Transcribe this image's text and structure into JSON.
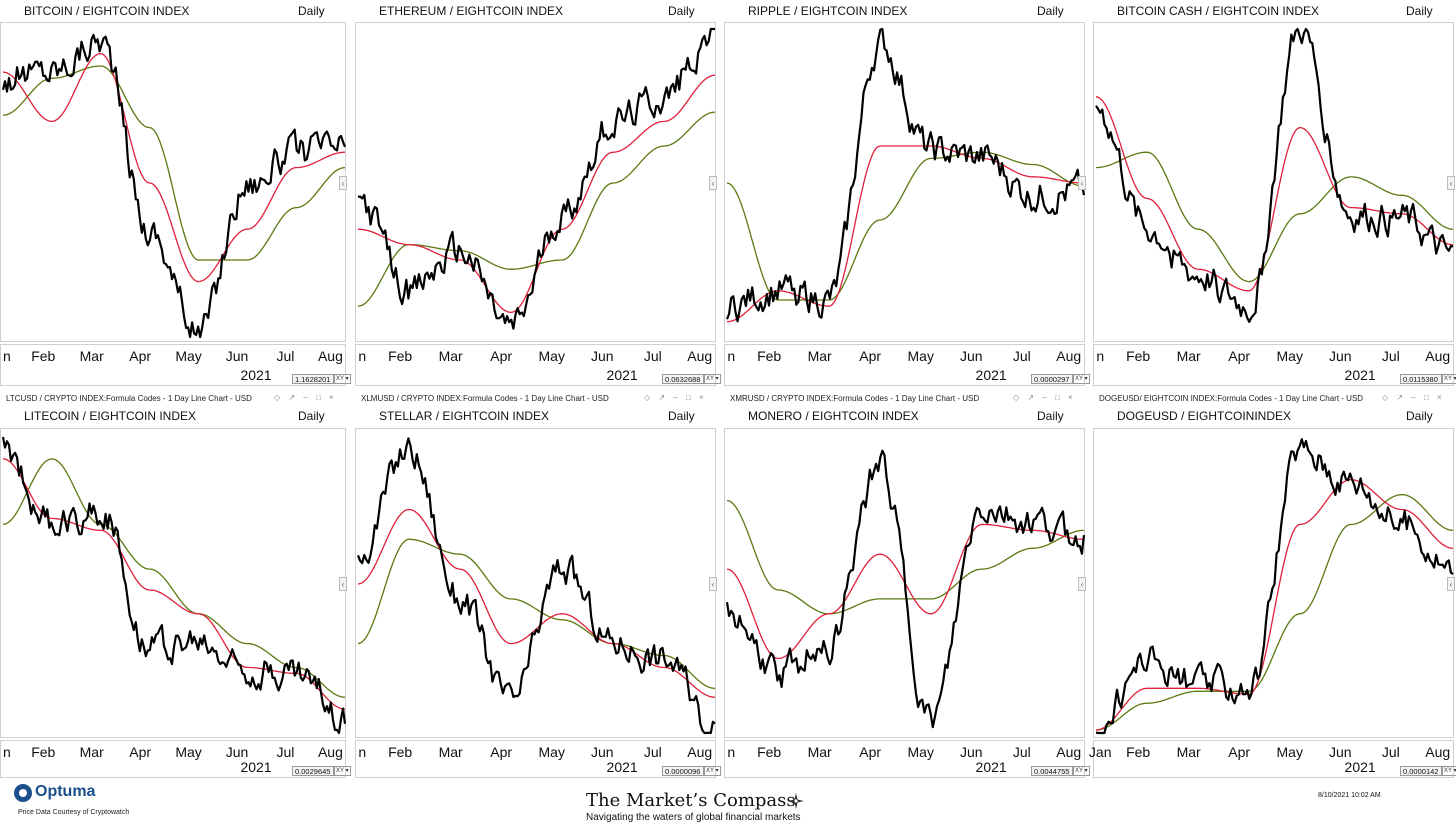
{
  "colors": {
    "price": "#000000",
    "ma_short": "#e0203a",
    "ma_long": "#5a7a10"
  },
  "panels": [
    {
      "title": "BITCOIN / EIGHTCOIN INDEX",
      "freq": "Daily",
      "subheader": "",
      "months": [
        "n",
        "Feb",
        "Mar",
        "Apr",
        "May",
        "Jun",
        "Jul",
        "Aug"
      ],
      "year": "2021",
      "value": "1.1628201",
      "xy": "XY ▾"
    },
    {
      "title": "ETHEREUM / EIGHTCOIN INDEX",
      "freq": "Daily",
      "subheader": "",
      "months": [
        "n",
        "Feb",
        "Mar",
        "Apr",
        "May",
        "Jun",
        "Jul",
        "Aug"
      ],
      "year": "2021",
      "value": "0.0632688",
      "xy": "XY ▾"
    },
    {
      "title": "RIPPLE / EIGHTCOIN INDEX",
      "freq": "Daily",
      "subheader": "",
      "months": [
        "n",
        "Feb",
        "Mar",
        "Apr",
        "May",
        "Jun",
        "Jul",
        "Aug"
      ],
      "year": "2021",
      "value": "0.0000297",
      "xy": "XY ▾"
    },
    {
      "title": "BITCOIN CASH / EIGHTCOIN INDEX",
      "freq": "Daily",
      "subheader": "",
      "months": [
        "n",
        "Feb",
        "Mar",
        "Apr",
        "May",
        "Jun",
        "Jul",
        "Aug"
      ],
      "year": "2021",
      "value": "0.0115380",
      "xy": "XY ▾"
    },
    {
      "title": "LITECOIN / EIGHTCOIN INDEX",
      "freq": "Daily",
      "subheader": "LTCUSD / CRYPTO INDEX:Formula Codes - 1 Day Line Chart - USD",
      "months": [
        "n",
        "Feb",
        "Mar",
        "Apr",
        "May",
        "Jun",
        "Jul",
        "Aug"
      ],
      "year": "2021",
      "value": "0.0029645",
      "xy": "XY ▾"
    },
    {
      "title": "STELLAR / EIGHTCOIN INDEX",
      "freq": "Daily",
      "subheader": "XLMUSD / CRYPTO INDEX:Formula Codes - 1 Day Line Chart - USD",
      "months": [
        "n",
        "Feb",
        "Mar",
        "Apr",
        "May",
        "Jun",
        "Jul",
        "Aug"
      ],
      "year": "2021",
      "value": "0.0000096",
      "xy": "XY ▾"
    },
    {
      "title": "MONERO / EIGHTCOIN INDEX",
      "freq": "Daily",
      "subheader": "XMRUSD / CRYPTO INDEX:Formula Codes - 1 Day Line Chart - USD",
      "months": [
        "n",
        "Feb",
        "Mar",
        "Apr",
        "May",
        "Jun",
        "Jul",
        "Aug"
      ],
      "year": "2021",
      "value": "0.0044755",
      "xy": "XY ▾"
    },
    {
      "title": "DOGEUSD / EIGHTCOININDEX",
      "freq": "Daily",
      "subheader": "DOGEUSD/ EIGHTCOIN INDEX:Formula Codes - 1 Day Line Chart - USD",
      "months": [
        "Jan",
        "Feb",
        "Mar",
        "Apr",
        "May",
        "Jun",
        "Jul",
        "Aug"
      ],
      "year": "2021",
      "value": "0.0000142",
      "xy": "XY ▾"
    }
  ],
  "chart_data": [
    {
      "type": "line",
      "title": "BITCOIN / EIGHTCOIN INDEX",
      "categories": [
        "Jan",
        "Feb",
        "Mar",
        "Apr",
        "May",
        "Jun",
        "Jul",
        "Aug"
      ],
      "series": [
        {
          "values": [
            0.84,
            0.87,
            0.97,
            0.35,
            0.02,
            0.5,
            0.6,
            0.62
          ]
        },
        {
          "values": [
            0.86,
            0.7,
            0.92,
            0.5,
            0.18,
            0.35,
            0.55,
            0.6
          ]
        },
        {
          "values": [
            0.72,
            0.84,
            0.88,
            0.68,
            0.25,
            0.25,
            0.42,
            0.55
          ]
        }
      ]
    },
    {
      "type": "line",
      "title": "ETHEREUM / EIGHTCOIN INDEX",
      "categories": [
        "Jan",
        "Feb",
        "Mar",
        "Apr",
        "May",
        "Jun",
        "Jul",
        "Aug"
      ],
      "series": [
        {
          "values": [
            0.45,
            0.15,
            0.28,
            0.03,
            0.4,
            0.7,
            0.78,
            0.99
          ]
        },
        {
          "values": [
            0.35,
            0.3,
            0.25,
            0.08,
            0.35,
            0.6,
            0.7,
            0.85
          ]
        },
        {
          "values": [
            0.1,
            0.3,
            0.28,
            0.22,
            0.25,
            0.5,
            0.62,
            0.73
          ]
        }
      ]
    },
    {
      "type": "line",
      "title": "RIPPLE / EIGHTCOIN INDEX",
      "categories": [
        "Jan",
        "Feb",
        "Mar",
        "Apr",
        "May",
        "Jun",
        "Jul",
        "Aug"
      ],
      "series": [
        {
          "values": [
            0.1,
            0.15,
            0.12,
            0.95,
            0.6,
            0.58,
            0.46,
            0.47
          ]
        },
        {
          "values": [
            0.05,
            0.15,
            0.1,
            0.62,
            0.62,
            0.58,
            0.52,
            0.5
          ]
        },
        {
          "values": [
            0.5,
            0.12,
            0.12,
            0.38,
            0.58,
            0.6,
            0.56,
            0.49
          ]
        }
      ]
    },
    {
      "type": "line",
      "title": "BITCOIN CASH / EIGHTCOIN INDEX",
      "categories": [
        "Jan",
        "Feb",
        "Mar",
        "Apr",
        "May",
        "Jun",
        "Jul",
        "Aug"
      ],
      "series": [
        {
          "values": [
            0.75,
            0.35,
            0.2,
            0.1,
            1.0,
            0.4,
            0.38,
            0.26
          ]
        },
        {
          "values": [
            0.78,
            0.45,
            0.22,
            0.15,
            0.68,
            0.42,
            0.4,
            0.3
          ]
        },
        {
          "values": [
            0.55,
            0.6,
            0.35,
            0.18,
            0.4,
            0.52,
            0.46,
            0.35
          ]
        }
      ]
    },
    {
      "type": "line",
      "title": "LITECOIN / EIGHTCOIN INDEX",
      "categories": [
        "Jan",
        "Feb",
        "Mar",
        "Apr",
        "May",
        "Jun",
        "Jul",
        "Aug"
      ],
      "series": [
        {
          "values": [
            0.95,
            0.7,
            0.75,
            0.3,
            0.3,
            0.22,
            0.2,
            0.05
          ]
        },
        {
          "values": [
            0.92,
            0.72,
            0.68,
            0.48,
            0.4,
            0.22,
            0.2,
            0.08
          ]
        },
        {
          "values": [
            0.7,
            0.92,
            0.7,
            0.55,
            0.4,
            0.3,
            0.22,
            0.12
          ]
        }
      ]
    },
    {
      "type": "line",
      "title": "STELLAR / EIGHTCOIN INDEX",
      "categories": [
        "Jan",
        "Feb",
        "Mar",
        "Apr",
        "May",
        "Jun",
        "Jul",
        "Aug"
      ],
      "series": [
        {
          "values": [
            0.6,
            0.95,
            0.45,
            0.1,
            0.55,
            0.3,
            0.25,
            0.02
          ]
        },
        {
          "values": [
            0.5,
            0.75,
            0.55,
            0.3,
            0.4,
            0.3,
            0.22,
            0.12
          ]
        },
        {
          "values": [
            0.3,
            0.65,
            0.6,
            0.45,
            0.38,
            0.3,
            0.26,
            0.15
          ]
        }
      ]
    },
    {
      "type": "line",
      "title": "MONERO / EIGHTCOIN INDEX",
      "categories": [
        "Jan",
        "Feb",
        "Mar",
        "Apr",
        "May",
        "Jun",
        "Jul",
        "Aug"
      ],
      "series": [
        {
          "values": [
            0.4,
            0.2,
            0.3,
            0.9,
            0.03,
            0.75,
            0.7,
            0.65
          ]
        },
        {
          "values": [
            0.55,
            0.25,
            0.4,
            0.6,
            0.4,
            0.7,
            0.68,
            0.65
          ]
        },
        {
          "values": [
            0.78,
            0.48,
            0.4,
            0.45,
            0.45,
            0.55,
            0.62,
            0.68
          ]
        }
      ]
    },
    {
      "type": "line",
      "title": "DOGEUSD / EIGHTCOININDEX",
      "categories": [
        "Jan",
        "Feb",
        "Mar",
        "Apr",
        "May",
        "Jun",
        "Jul",
        "Aug"
      ],
      "series": [
        {
          "values": [
            0.01,
            0.25,
            0.16,
            0.15,
            0.95,
            0.85,
            0.7,
            0.55
          ]
        },
        {
          "values": [
            0.01,
            0.15,
            0.15,
            0.13,
            0.7,
            0.85,
            0.75,
            0.62
          ]
        },
        {
          "values": [
            0.01,
            0.1,
            0.14,
            0.14,
            0.4,
            0.7,
            0.8,
            0.68
          ]
        }
      ]
    }
  ],
  "footer": {
    "logo_text": "Optuma",
    "credit": "Price Data Courtesy of Cryptowatch",
    "brand_title": "The Market’s Compass",
    "tagline": "Navigating the waters of global financial markets",
    "timestamp": "8/10/2021 10:02 AM"
  }
}
